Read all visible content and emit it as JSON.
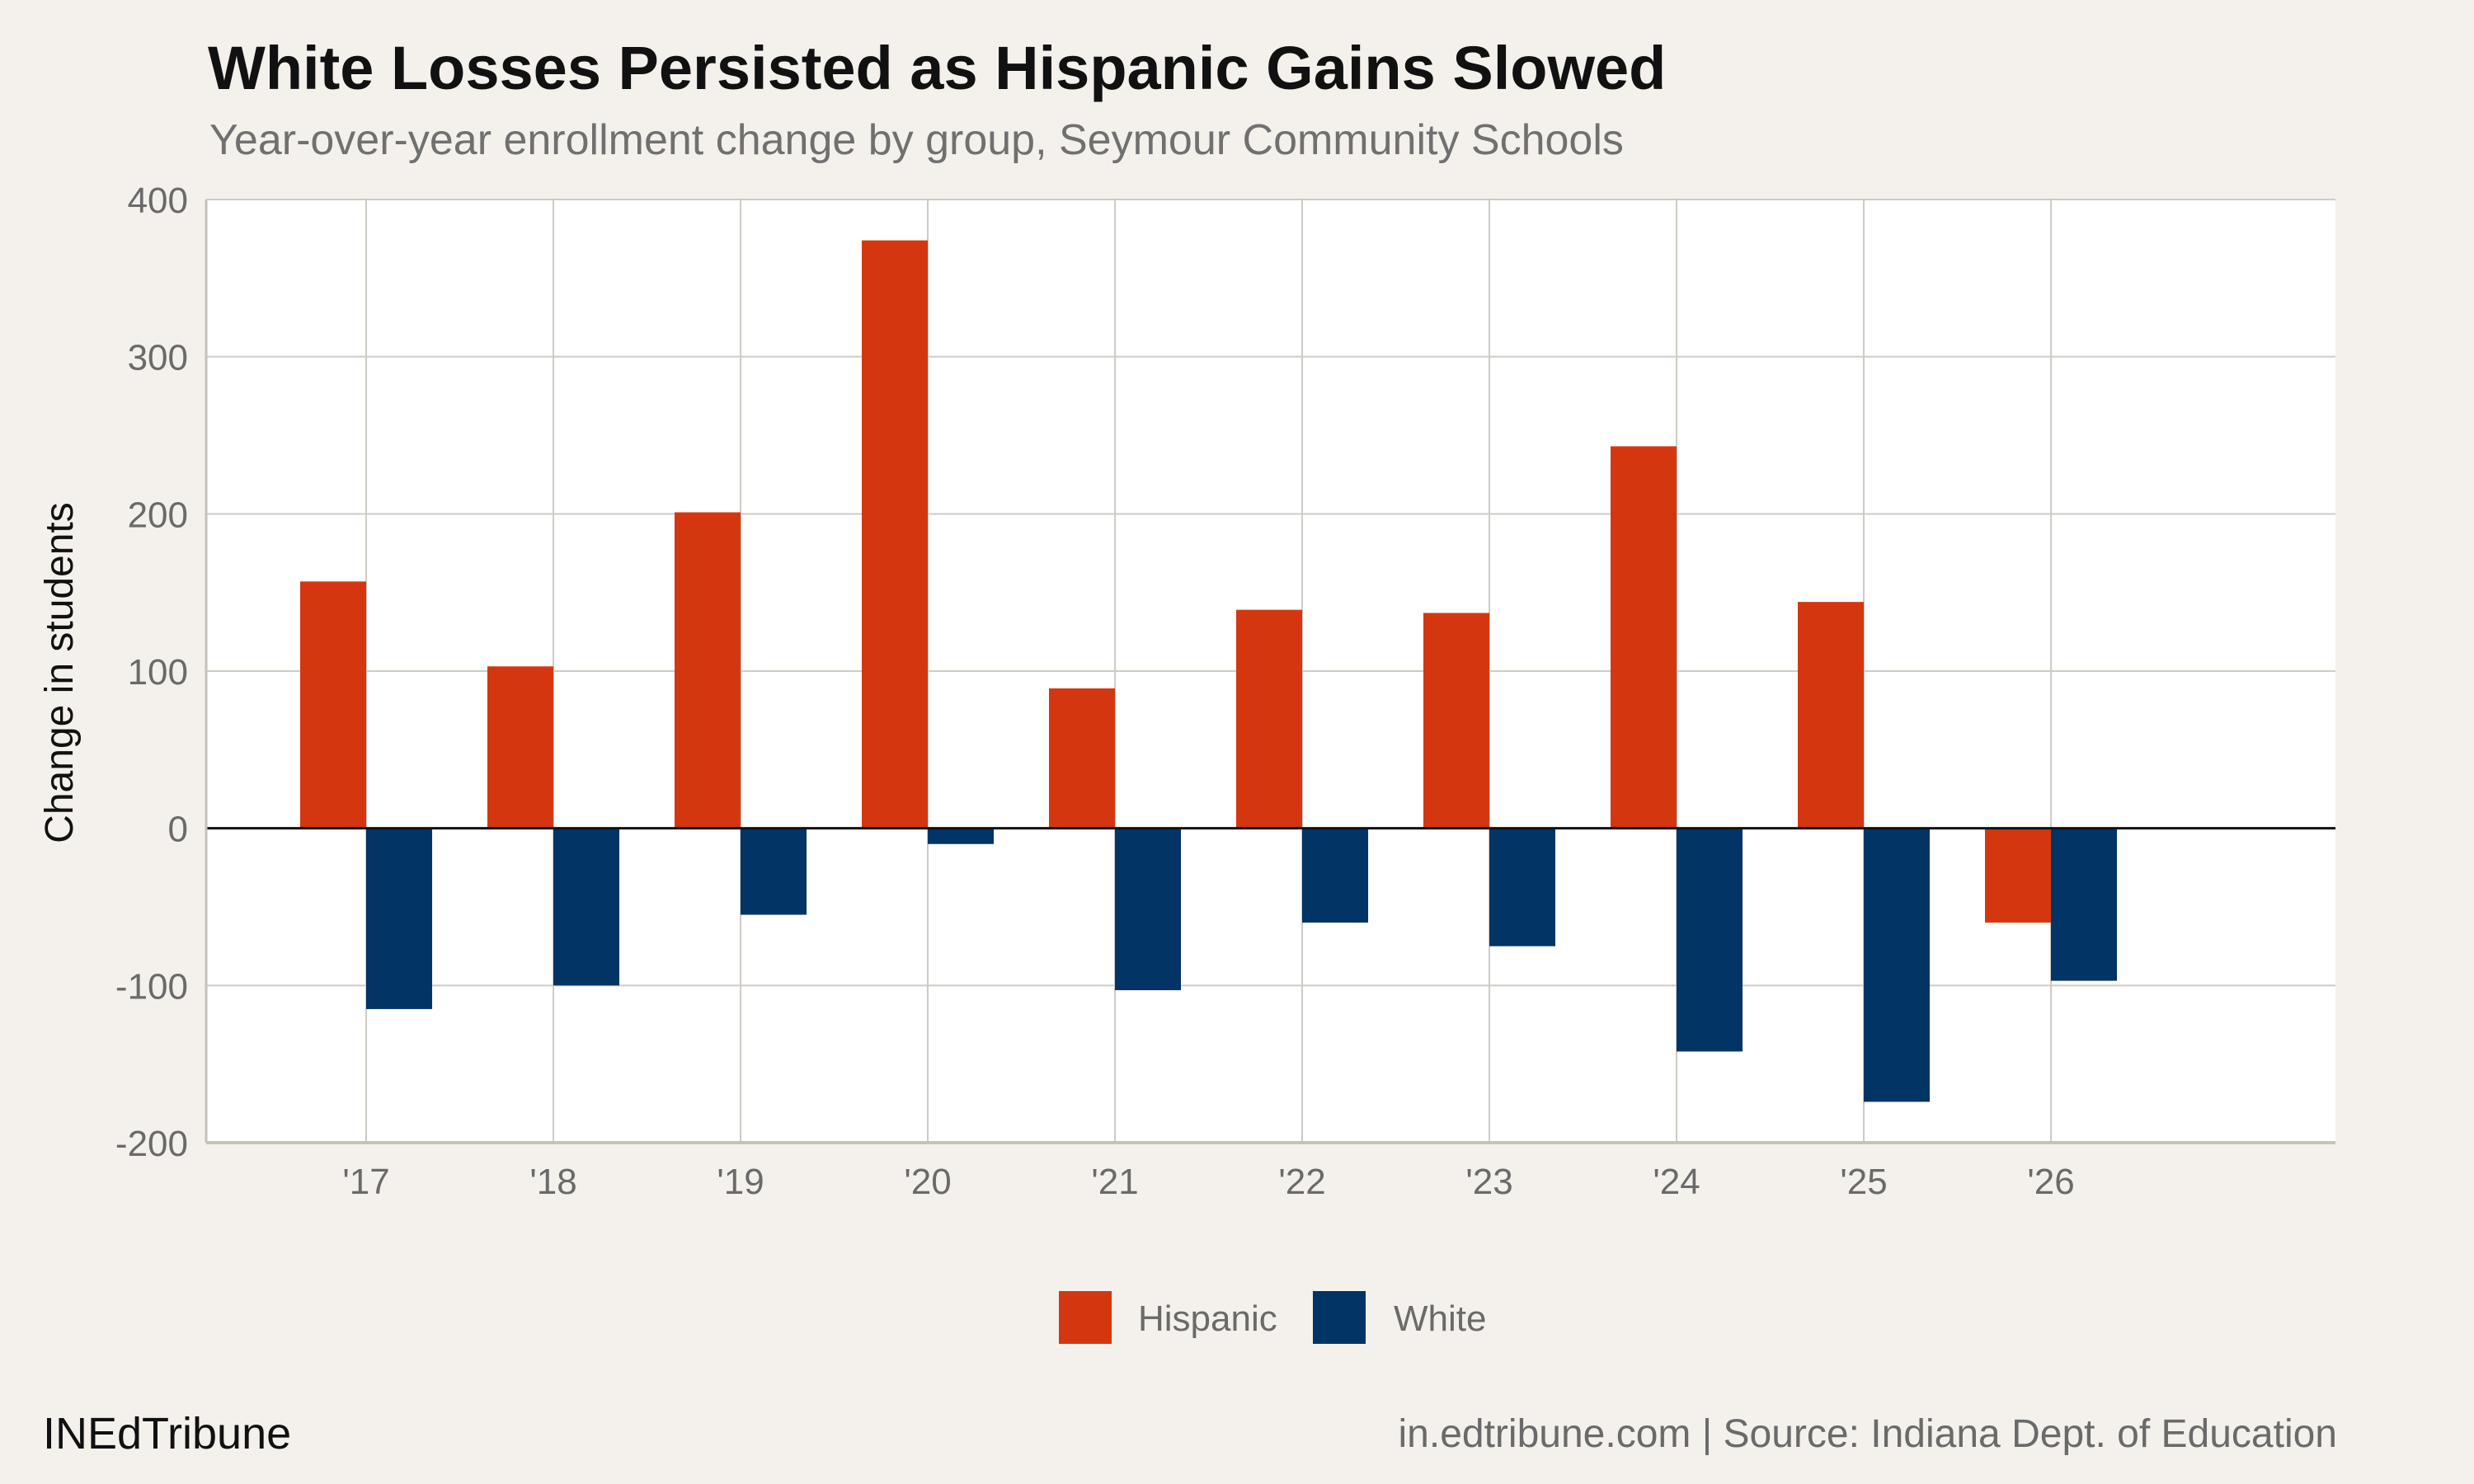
{
  "header": {
    "title": "White Losses Persisted as Hispanic Gains Slowed",
    "subtitle": "Year-over-year enrollment change by group, Seymour Community Schools"
  },
  "footer": {
    "brand": "INEdTribune",
    "credit": "in.edtribune.com | Source: Indiana Dept. of Education"
  },
  "colors": {
    "background": "#f4f1ec",
    "plot_background": "#ffffff",
    "grid": "#cfcbc4",
    "hispanic": "#d4370f",
    "white": "#023466"
  },
  "chart_data": {
    "type": "bar",
    "title": "White Losses Persisted as Hispanic Gains Slowed",
    "subtitle": "Year-over-year enrollment change by group, Seymour Community Schools",
    "xlabel": "",
    "ylabel": "Change in students",
    "categories": [
      "'17",
      "'18",
      "'19",
      "'20",
      "'21",
      "'22",
      "'23",
      "'24",
      "'25",
      "'26"
    ],
    "series": [
      {
        "name": "Hispanic",
        "color": "#d4370f",
        "values": [
          157,
          103,
          201,
          374,
          89,
          139,
          137,
          243,
          144,
          -60
        ]
      },
      {
        "name": "White",
        "color": "#023466",
        "values": [
          -115,
          -100,
          -55,
          -10,
          -103,
          -60,
          -75,
          -142,
          -174,
          -97
        ]
      }
    ],
    "ylim": [
      -200,
      400
    ],
    "yticks": [
      400,
      300,
      200,
      100,
      0,
      -100,
      -200
    ],
    "ytick_labels": [
      "400",
      "300",
      "200",
      "100",
      "0",
      "-100",
      "-200"
    ],
    "grid": true,
    "legend_position": "bottom"
  }
}
